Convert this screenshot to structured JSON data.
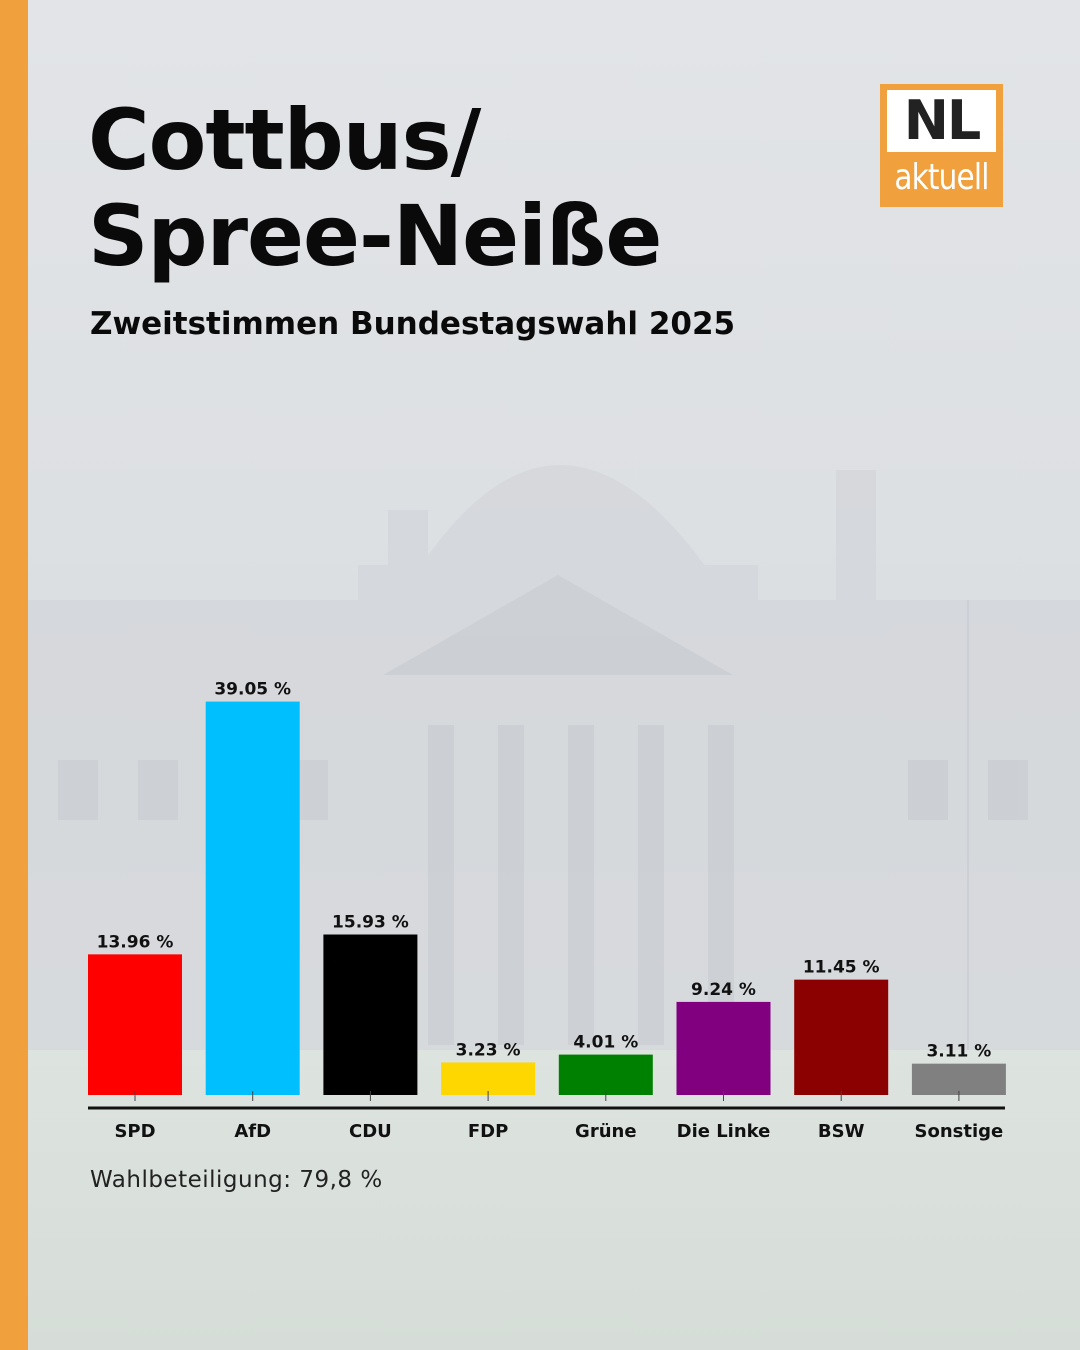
{
  "header": {
    "title_line1": "Cottbus/",
    "title_line2": "Spree-Neiße",
    "subtitle": "Zweitstimmen Bundestagswahl 2025"
  },
  "logo": {
    "top": "NL",
    "bottom": "aktuell",
    "color": "#f0a03c"
  },
  "chart_data": {
    "type": "bar",
    "title": "",
    "xlabel": "",
    "ylabel": "",
    "ylim": [
      0,
      40
    ],
    "grid": false,
    "categories": [
      "SPD",
      "AfD",
      "CDU",
      "FDP",
      "Grüne",
      "Die Linke",
      "BSW",
      "Sonstige"
    ],
    "values": [
      13.96,
      39.05,
      15.93,
      3.23,
      4.01,
      9.24,
      11.45,
      3.11
    ],
    "value_labels": [
      "13.96 %",
      "39.05 %",
      "15.93 %",
      "3.23 %",
      "4.01 %",
      "9.24 %",
      "11.45 %",
      "3.11 %"
    ],
    "colors": [
      "#ff0000",
      "#00bfff",
      "#000000",
      "#ffd700",
      "#008000",
      "#800080",
      "#8b0000",
      "#808080"
    ]
  },
  "footer": {
    "turnout": "Wahlbeteiligung: 79,8 %"
  }
}
